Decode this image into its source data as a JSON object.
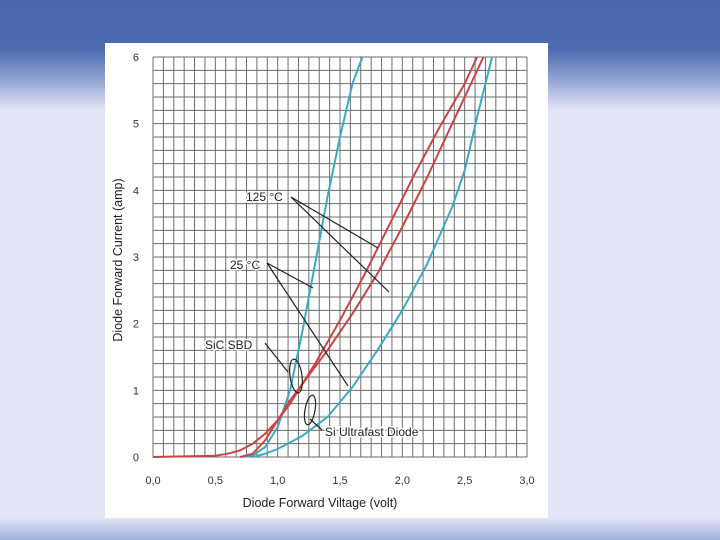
{
  "slide": {
    "colors": {
      "header": "#4a67ad",
      "background": "#e3e5f6"
    }
  },
  "chart_data": {
    "type": "line",
    "title": "",
    "xlabel": "Diode Forward Viltage (volt)",
    "ylabel": "Diode Forward Current (amp)",
    "xlim": [
      0,
      3
    ],
    "ylim": [
      0,
      6
    ],
    "x_ticks": [
      "0,0",
      "0,5",
      "1,0",
      "1,5",
      "2,0",
      "2,5",
      "3,0"
    ],
    "y_ticks": [
      "0",
      "1",
      "2",
      "3",
      "4",
      "5",
      "6"
    ],
    "grid": true,
    "series": [
      {
        "color": "#3aa9c8",
        "points": [
          [
            0.7,
            0
          ],
          [
            0.8,
            0.02
          ],
          [
            0.9,
            0.15
          ],
          [
            1.0,
            0.45
          ],
          [
            1.1,
            1.0
          ],
          [
            1.2,
            1.9
          ],
          [
            1.3,
            2.9
          ],
          [
            1.4,
            3.9
          ],
          [
            1.5,
            4.8
          ],
          [
            1.6,
            5.6
          ],
          [
            1.68,
            6.0
          ]
        ]
      },
      {
        "color": "#c84545",
        "points": [
          [
            0.0,
            0
          ],
          [
            0.5,
            0.02
          ],
          [
            0.6,
            0.05
          ],
          [
            0.7,
            0.1
          ],
          [
            0.8,
            0.2
          ],
          [
            0.9,
            0.35
          ],
          [
            1.0,
            0.55
          ],
          [
            1.1,
            0.8
          ],
          [
            1.2,
            1.1
          ],
          [
            1.3,
            1.4
          ],
          [
            1.5,
            2.05
          ],
          [
            1.7,
            2.75
          ],
          [
            1.9,
            3.5
          ],
          [
            2.1,
            4.25
          ],
          [
            2.3,
            4.95
          ],
          [
            2.5,
            5.6
          ],
          [
            2.6,
            6.0
          ]
        ]
      },
      {
        "color": "#c84545",
        "points": [
          [
            0.7,
            0
          ],
          [
            0.8,
            0.05
          ],
          [
            0.9,
            0.25
          ],
          [
            1.0,
            0.55
          ],
          [
            1.1,
            0.85
          ],
          [
            1.2,
            1.1
          ],
          [
            1.4,
            1.6
          ],
          [
            1.6,
            2.15
          ],
          [
            1.8,
            2.75
          ],
          [
            2.0,
            3.45
          ],
          [
            2.2,
            4.2
          ],
          [
            2.4,
            5.0
          ],
          [
            2.5,
            5.4
          ],
          [
            2.65,
            6.0
          ]
        ]
      },
      {
        "color": "#3aa9c8",
        "points": [
          [
            0.8,
            0
          ],
          [
            0.9,
            0.05
          ],
          [
            1.0,
            0.12
          ],
          [
            1.2,
            0.32
          ],
          [
            1.4,
            0.6
          ],
          [
            1.6,
            1.05
          ],
          [
            1.8,
            1.6
          ],
          [
            2.0,
            2.2
          ],
          [
            2.2,
            2.9
          ],
          [
            2.4,
            3.75
          ],
          [
            2.5,
            4.3
          ],
          [
            2.6,
            5.1
          ],
          [
            2.72,
            6.0
          ]
        ]
      }
    ],
    "annotations": [
      {
        "text": "125 °C"
      },
      {
        "text": "25 °C"
      },
      {
        "text": "SiC SBD"
      },
      {
        "text": "Si Ultrafast Diode"
      }
    ]
  }
}
